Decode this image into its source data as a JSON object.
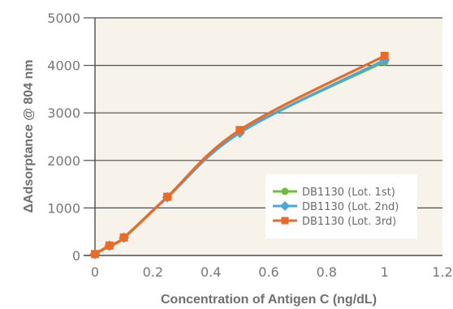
{
  "chart_data": {
    "type": "line",
    "xlabel": "Concentration of Antigen C (ng/dL)",
    "ylabel": "ΔAdsorptance @ 804 nm",
    "xlim": [
      0,
      1.2
    ],
    "ylim": [
      0,
      5000
    ],
    "x_ticks": [
      "0",
      "0.2",
      "0.4",
      "0.6",
      "0.8",
      "1",
      "1.2"
    ],
    "y_ticks": [
      "0",
      "1000",
      "2000",
      "3000",
      "4000",
      "5000"
    ],
    "grid": "horizontal",
    "legend_position": "bottom-right",
    "x": [
      0,
      0.05,
      0.1,
      0.25,
      0.5,
      1.0
    ],
    "series": [
      {
        "name": "DB1130 (Lot. 1st)",
        "color": "#6cbf3c",
        "marker": "circle",
        "values": [
          30,
          200,
          370,
          1230,
          2590,
          4080
        ]
      },
      {
        "name": "DB1130 (Lot. 2nd)",
        "color": "#4aa7d9",
        "marker": "diamond",
        "values": [
          30,
          205,
          375,
          1225,
          2580,
          4110
        ]
      },
      {
        "name": "DB1130 (Lot. 3rd)",
        "color": "#ec6a24",
        "marker": "square",
        "values": [
          30,
          210,
          380,
          1235,
          2640,
          4200
        ]
      }
    ],
    "colors": {
      "plot_background": "#f7f3ea",
      "axis": "#4d4d4d"
    }
  }
}
